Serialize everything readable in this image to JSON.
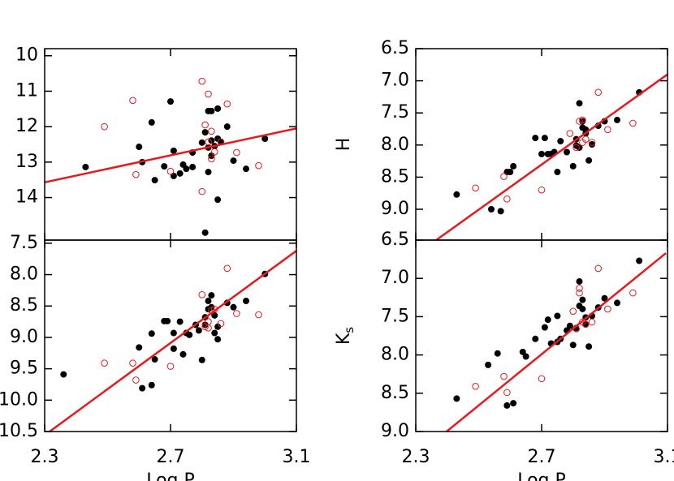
{
  "chart_data": [
    {
      "type": "scatter",
      "xlim": [
        2.3,
        3.1
      ],
      "xticks": [
        2.3,
        2.7,
        3.1
      ],
      "show_xtick_labels": false,
      "ylim": [
        15.2,
        9.8
      ],
      "yticks": [
        10,
        11,
        12,
        13,
        14
      ],
      "series": [
        {
          "color": "#000000",
          "marker": "filled",
          "x": [
            2.43,
            2.6,
            2.61,
            2.64,
            2.65,
            2.68,
            2.7,
            2.71,
            2.71,
            2.73,
            2.74,
            2.75,
            2.77,
            2.77,
            2.8,
            2.81,
            2.81,
            2.82,
            2.82,
            2.83,
            2.83,
            2.83,
            2.84,
            2.85,
            2.85,
            2.86,
            2.85,
            2.88,
            2.9,
            2.94,
            3.0,
            2.82
          ],
          "y": [
            13.14,
            12.57,
            13.0,
            11.88,
            13.51,
            13.12,
            11.29,
            12.68,
            13.39,
            13.32,
            13.07,
            13.19,
            12.73,
            13.14,
            12.45,
            12.16,
            14.99,
            12.59,
            11.56,
            12.82,
            11.56,
            12.39,
            12.55,
            12.34,
            11.49,
            12.43,
            14.06,
            12.0,
            12.96,
            13.19,
            12.34,
            13.28
          ]
        },
        {
          "color": "#e8191e",
          "marker": "open",
          "x": [
            2.49,
            2.58,
            2.59,
            2.7,
            2.8,
            2.8,
            2.81,
            2.82,
            2.83,
            2.83,
            2.84,
            2.86,
            2.88,
            2.91,
            2.98,
            2.82
          ],
          "y": [
            12.0,
            11.26,
            13.35,
            13.26,
            10.72,
            13.83,
            11.95,
            11.08,
            12.91,
            12.13,
            12.71,
            12.43,
            11.36,
            12.73,
            13.1,
            12.43
          ]
        }
      ],
      "fit": {
        "color": "#e8191e",
        "x": [
          2.3,
          3.1
        ],
        "y": [
          13.57,
          12.05
        ]
      }
    },
    {
      "type": "scatter",
      "xlim": [
        2.3,
        3.1
      ],
      "xticks": [
        2.3,
        2.7,
        3.1
      ],
      "show_xtick_labels": true,
      "xlabel": "Log P",
      "ylim": [
        10.5,
        7.45
      ],
      "yticks": [
        7.5,
        {
          "value": 8,
          "label": "8.0"
        },
        8.5,
        {
          "value": 9,
          "label": "9.0"
        },
        9.5,
        {
          "value": 10,
          "label": "10.0"
        },
        10.5
      ],
      "series": [
        {
          "color": "#000000",
          "marker": "filled",
          "x": [
            2.36,
            2.6,
            2.61,
            2.64,
            2.64,
            2.65,
            2.68,
            2.69,
            2.71,
            2.71,
            2.73,
            2.74,
            2.75,
            2.76,
            2.78,
            2.79,
            2.8,
            2.81,
            2.81,
            2.82,
            2.82,
            2.83,
            2.83,
            2.84,
            2.84,
            2.85,
            2.85,
            2.88,
            2.9,
            2.94,
            3.0
          ],
          "y": [
            9.59,
            9.16,
            9.81,
            9.76,
            8.94,
            9.35,
            8.74,
            8.74,
            8.93,
            9.18,
            8.75,
            9.27,
            8.93,
            8.96,
            8.8,
            8.89,
            9.36,
            8.8,
            8.68,
            8.55,
            8.42,
            8.33,
            8.52,
            8.93,
            8.65,
            8.83,
            9.03,
            8.45,
            8.52,
            8.42,
            7.99
          ]
        },
        {
          "color": "#e8191e",
          "marker": "open",
          "x": [
            2.49,
            2.58,
            2.59,
            2.7,
            2.8,
            2.81,
            2.82,
            2.82,
            2.83,
            2.84,
            2.86,
            2.88,
            2.91,
            2.98
          ],
          "y": [
            9.41,
            9.41,
            9.68,
            9.46,
            8.32,
            8.83,
            8.85,
            8.75,
            8.57,
            8.55,
            8.78,
            7.9,
            8.62,
            8.64
          ]
        }
      ],
      "fit": {
        "color": "#e8191e",
        "x": [
          2.316,
          3.1
        ],
        "y": [
          10.5,
          7.62
        ]
      }
    },
    {
      "type": "scatter",
      "xlim": [
        2.3,
        3.1
      ],
      "xticks": [
        2.3,
        2.7,
        3.1
      ],
      "show_xtick_labels": false,
      "ylim": [
        9.48,
        6.5
      ],
      "ylabel": "H",
      "yticks": [
        6.5,
        {
          "value": 7,
          "label": "7.0"
        },
        7.5,
        {
          "value": 8,
          "label": "8.0"
        },
        8.5,
        {
          "value": 9,
          "label": "9.0"
        }
      ],
      "series": [
        {
          "color": "#000000",
          "marker": "filled",
          "x": [
            2.43,
            2.54,
            2.57,
            2.59,
            2.6,
            2.61,
            2.68,
            2.7,
            2.71,
            2.72,
            2.73,
            2.74,
            2.75,
            2.76,
            2.78,
            2.8,
            2.81,
            2.81,
            2.82,
            2.82,
            2.83,
            2.83,
            2.84,
            2.84,
            2.85,
            2.86,
            2.88,
            2.9,
            2.94,
            3.01
          ],
          "y": [
            8.77,
            9.0,
            9.03,
            8.42,
            8.42,
            8.33,
            7.89,
            8.14,
            7.89,
            8.14,
            8.14,
            8.11,
            8.42,
            7.94,
            8.11,
            8.33,
            7.91,
            8.01,
            8.04,
            7.35,
            7.63,
            7.73,
            7.76,
            7.82,
            8.24,
            7.99,
            7.7,
            7.63,
            7.61,
            7.18
          ]
        },
        {
          "color": "#e8191e",
          "marker": "open",
          "x": [
            2.49,
            2.58,
            2.59,
            2.7,
            2.79,
            2.81,
            2.82,
            2.83,
            2.83,
            2.84,
            2.86,
            2.88,
            2.91,
            2.99
          ],
          "y": [
            8.67,
            8.49,
            8.84,
            8.7,
            7.82,
            8.04,
            7.63,
            7.61,
            7.96,
            7.91,
            7.96,
            7.18,
            7.76,
            7.66
          ]
        }
      ],
      "fit": {
        "color": "#e8191e",
        "x": [
          2.365,
          3.1
        ],
        "y": [
          9.48,
          6.9
        ]
      }
    },
    {
      "type": "scatter",
      "xlim": [
        2.3,
        3.1
      ],
      "xticks": [
        2.3,
        2.7,
        3.1
      ],
      "show_xtick_labels": true,
      "xlabel": "Log P",
      "ylim": [
        9.0,
        6.5
      ],
      "ylabel": "K",
      "ylabel_subscript": "s",
      "yticks": [
        6.5,
        {
          "value": 7,
          "label": "7.0"
        },
        7.5,
        {
          "value": 8,
          "label": "8.0"
        },
        8.5,
        {
          "value": 9,
          "label": "9.0"
        }
      ],
      "series": [
        {
          "color": "#000000",
          "marker": "filled",
          "x": [
            2.43,
            2.53,
            2.56,
            2.59,
            2.61,
            2.64,
            2.65,
            2.68,
            2.71,
            2.72,
            2.73,
            2.75,
            2.75,
            2.76,
            2.78,
            2.79,
            2.8,
            2.81,
            2.82,
            2.82,
            2.83,
            2.83,
            2.84,
            2.84,
            2.85,
            2.86,
            2.88,
            2.9,
            2.94,
            3.01
          ],
          "y": [
            8.57,
            8.13,
            7.98,
            8.66,
            8.63,
            7.96,
            8.02,
            7.79,
            7.64,
            7.54,
            7.85,
            7.83,
            7.49,
            7.79,
            7.68,
            7.62,
            7.87,
            7.65,
            7.36,
            7.04,
            7.4,
            7.28,
            7.51,
            7.6,
            7.89,
            7.49,
            7.38,
            7.26,
            7.32,
            6.77
          ]
        },
        {
          "color": "#e8191e",
          "marker": "open",
          "x": [
            2.49,
            2.58,
            2.59,
            2.7,
            2.8,
            2.81,
            2.82,
            2.82,
            2.83,
            2.84,
            2.86,
            2.88,
            2.91,
            2.99
          ],
          "y": [
            8.41,
            8.28,
            8.49,
            8.31,
            7.43,
            7.66,
            7.13,
            7.19,
            7.57,
            7.6,
            7.57,
            6.87,
            7.4,
            7.19
          ]
        }
      ],
      "fit": {
        "color": "#e8191e",
        "x": [
          2.398,
          3.095
        ],
        "y": [
          9.0,
          6.67
        ]
      }
    }
  ]
}
